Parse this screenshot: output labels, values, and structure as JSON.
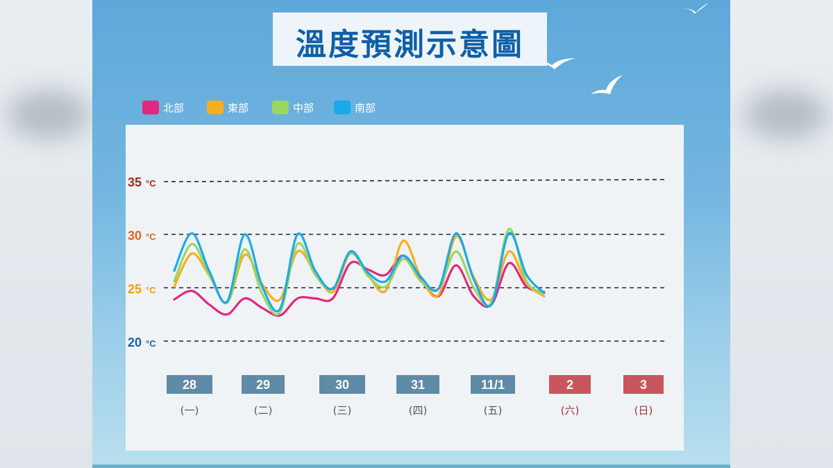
{
  "title": "溫度預測示意圖",
  "colors": {
    "north": "#e0287f",
    "east": "#f6ad1f",
    "central": "#9bd562",
    "south": "#1ba9ec",
    "date_weekday": "#5f8ba6",
    "date_weekend": "#c9555c",
    "t35": "#a6281d",
    "t30": "#e06524",
    "t25": "#f59a1a",
    "t20": "#1762a6"
  },
  "chart_data": {
    "type": "line",
    "title": "溫度預測示意圖",
    "ylim": [
      20,
      35
    ],
    "gridlines": [
      35,
      30,
      25,
      20
    ],
    "y_ticks": [
      {
        "value": 35,
        "label": "35",
        "unit": "°C"
      },
      {
        "value": 30,
        "label": "30",
        "unit": "°C"
      },
      {
        "value": 25,
        "label": "25",
        "unit": "°C"
      },
      {
        "value": 20,
        "label": "20",
        "unit": "°C"
      }
    ],
    "legend_position": "top-left",
    "days": [
      {
        "date": "28",
        "weekday": "(一)",
        "weekend": false
      },
      {
        "date": "29",
        "weekday": "(二)",
        "weekend": false
      },
      {
        "date": "30",
        "weekday": "(三)",
        "weekend": false
      },
      {
        "date": "31",
        "weekday": "(四)",
        "weekend": false
      },
      {
        "date": "11/1",
        "weekday": "(五)",
        "weekend": false
      },
      {
        "date": "2",
        "weekday": "(六)",
        "weekend": true
      },
      {
        "date": "3",
        "weekday": "(日)",
        "weekend": true
      }
    ],
    "x_step_days": 0.25,
    "series": [
      {
        "key": "north",
        "name": "北部",
        "values": [
          23.9,
          24.7,
          23.4,
          22.5,
          24.0,
          23.1,
          22.4,
          24.0,
          24.0,
          24.0,
          27.3,
          26.7,
          26.2,
          28.0,
          25.7,
          24.2,
          27.1,
          24.2,
          23.4,
          27.3,
          25.1,
          24.6
        ]
      },
      {
        "key": "east",
        "name": "東部",
        "values": [
          25.1,
          28.2,
          26.1,
          23.6,
          28.1,
          25.3,
          23.9,
          28.4,
          26.4,
          24.6,
          28.2,
          26.2,
          24.7,
          29.4,
          26.0,
          24.3,
          29.8,
          26.0,
          23.9,
          28.4,
          25.4,
          24.2
        ]
      },
      {
        "key": "central",
        "name": "中部",
        "values": [
          25.6,
          29.1,
          26.2,
          23.6,
          28.6,
          24.4,
          22.7,
          29.1,
          26.2,
          24.9,
          28.3,
          26.1,
          25.1,
          27.7,
          25.6,
          24.9,
          28.4,
          25.0,
          23.6,
          30.5,
          25.6,
          24.5
        ]
      },
      {
        "key": "south",
        "name": "南部",
        "values": [
          26.6,
          30.1,
          26.5,
          23.7,
          30.0,
          25.1,
          23.0,
          30.0,
          26.6,
          24.9,
          28.4,
          26.4,
          25.6,
          28.0,
          26.0,
          24.9,
          30.1,
          25.8,
          23.4,
          30.1,
          26.2,
          24.5
        ]
      }
    ]
  }
}
